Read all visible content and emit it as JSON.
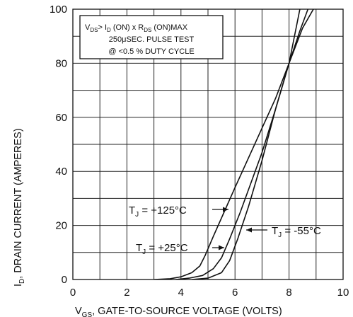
{
  "chart_data": {
    "type": "line",
    "xlabel": {
      "sym": "V",
      "sub": "GS",
      "text": ", GATE-TO-SOURCE VOLTAGE (VOLTS)"
    },
    "ylabel": {
      "sym": "I",
      "sub": "D",
      "text": ", DRAIN CURRENT (AMPERES)"
    },
    "xlim": [
      0,
      10
    ],
    "ylim": [
      0,
      100
    ],
    "x_ticks": [
      "0",
      "2",
      "4",
      "6",
      "8",
      "10"
    ],
    "y_ticks": [
      "0",
      "20",
      "40",
      "60",
      "80",
      "100"
    ],
    "grid": true,
    "series": [
      {
        "name": {
          "sym": "T",
          "sub": "J",
          "text": " = +125°C"
        },
        "x": [
          3.0,
          3.6,
          4.0,
          4.4,
          4.7,
          4.9,
          5.2,
          5.6,
          6.0,
          6.5,
          7.0,
          7.5,
          8.0,
          8.4
        ],
        "y": [
          0,
          0.3,
          1.0,
          2.5,
          5.0,
          9.0,
          16.0,
          25.0,
          34.0,
          45.0,
          56.0,
          67.0,
          80.0,
          100.0
        ]
      },
      {
        "name": {
          "sym": "T",
          "sub": "J",
          "text": " = +25°C"
        },
        "x": [
          3.8,
          4.3,
          4.8,
          5.2,
          5.5,
          5.8,
          6.2,
          6.6,
          7.0,
          7.5,
          8.0,
          8.4,
          8.7
        ],
        "y": [
          0,
          0.5,
          1.5,
          4.0,
          8.0,
          15.0,
          25.0,
          36.0,
          47.0,
          63.0,
          80.0,
          92.0,
          100.0
        ]
      },
      {
        "name": {
          "sym": "T",
          "sub": "J",
          "text": " = -55°C"
        },
        "x": [
          4.4,
          5.0,
          5.5,
          5.8,
          6.1,
          6.5,
          7.0,
          7.5,
          8.0,
          8.5,
          8.9
        ],
        "y": [
          0,
          0.5,
          2.5,
          7.0,
          15.0,
          27.0,
          44.0,
          63.0,
          80.0,
          93.0,
          100.0
        ]
      }
    ],
    "annotation": {
      "line1": {
        "a": "V",
        "a_sub": "DS",
        "b": "> I",
        "b_sub": "D",
        "c": " (ON) x  R",
        "c_sub": "DS",
        "d": " (ON)MAX"
      },
      "line2": "250μSEC. PULSE TEST",
      "line3": "@ <0.5 % DUTY CYCLE"
    }
  }
}
